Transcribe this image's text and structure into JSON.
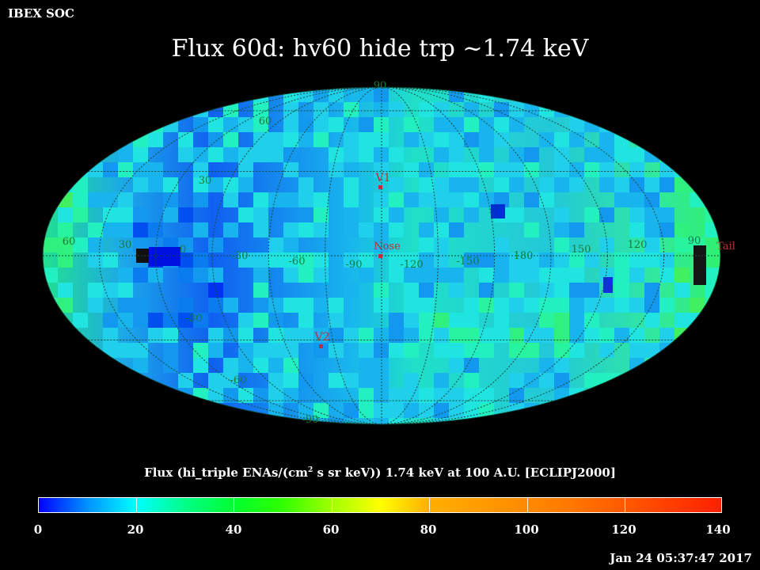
{
  "header": {
    "corner_label": "IBEX SOC",
    "title": "Flux   60d: hv60 hide trp ~1.74 keV"
  },
  "map": {
    "projection": "Mollweide (Hammer-Aitoff style all-sky map)",
    "latitude_labels": [
      "90",
      "60",
      "30",
      "-30",
      "-60",
      "-90"
    ],
    "longitude_labels": [
      "60",
      "30",
      "0",
      "-30",
      "-60",
      "-90",
      "-120",
      "-150",
      "180",
      "150",
      "120",
      "90"
    ],
    "markers": [
      {
        "name": "V1",
        "label": "V1"
      },
      {
        "name": "Nose",
        "label": "Nose"
      },
      {
        "name": "V2",
        "label": "V2"
      },
      {
        "name": "Tail",
        "label": "Tail"
      }
    ],
    "colors": {
      "background": "#000000",
      "grid": "#222222",
      "grid_label": "#1a7a3a",
      "marker": "#c03030"
    }
  },
  "colorbar": {
    "title_pre": "Flux (hi_triple ENAs/(cm",
    "title_sup": "2",
    "title_post": " s sr keV))  1.74 keV at 100 A.U. [ECLIPJ2000]",
    "ticks": [
      "0",
      "20",
      "40",
      "60",
      "80",
      "100",
      "120",
      "140"
    ],
    "range": [
      0,
      140
    ],
    "colors": [
      "#0000ff",
      "#00ffff",
      "#00ff30",
      "#ffff00",
      "#ff2000"
    ]
  },
  "footer": {
    "timestamp": "Jan 24 05:37:47 2017"
  }
}
